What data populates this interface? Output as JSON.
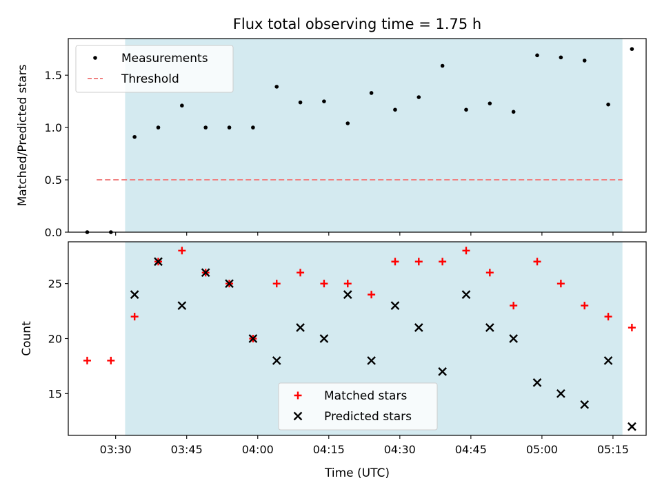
{
  "chart_data": {
    "title": "Flux total observing time = 1.75 h",
    "xlabel": "Time (UTC)",
    "x_ticks": [
      "03:30",
      "03:45",
      "04:00",
      "04:15",
      "04:30",
      "04:45",
      "05:00",
      "05:15"
    ],
    "x_tick_minutes": [
      210,
      225,
      240,
      255,
      270,
      285,
      300,
      315
    ],
    "xlim": [
      "03:20",
      "05:22"
    ],
    "observing_window": {
      "start": "03:32",
      "end": "05:17",
      "color": "#d4eaf0"
    },
    "panels": [
      {
        "type": "scatter",
        "ylabel": "Matched/Predicted stars",
        "ylim": [
          0,
          1.85
        ],
        "y_ticks": [
          "0.0",
          "0.5",
          "1.0",
          "1.5"
        ],
        "y_tick_values": [
          0,
          0.5,
          1.0,
          1.5
        ],
        "legend": "top-left",
        "series": [
          {
            "name": "Measurements",
            "marker": "dot",
            "color": "#000000",
            "times": [
              "03:24",
              "03:29",
              "03:34",
              "03:39",
              "03:44",
              "03:49",
              "03:54",
              "03:59",
              "04:04",
              "04:09",
              "04:14",
              "04:19",
              "04:24",
              "04:29",
              "04:34",
              "04:39",
              "04:44",
              "04:49",
              "04:54",
              "04:59",
              "05:04",
              "05:09",
              "05:14",
              "05:19"
            ],
            "values": [
              0,
              0,
              0.91,
              1.0,
              1.21,
              1.0,
              1.0,
              1.0,
              1.39,
              1.24,
              1.25,
              1.04,
              1.33,
              1.17,
              1.29,
              1.59,
              1.17,
              1.23,
              1.15,
              1.69,
              1.67,
              1.64,
              1.22,
              1.75
            ]
          },
          {
            "name": "Threshold",
            "marker": "dashed-line",
            "color": "#f08080",
            "x_range": [
              "03:26",
              "05:17"
            ],
            "value": 0.5
          }
        ]
      },
      {
        "type": "scatter",
        "ylabel": "Count",
        "ylim": [
          11.2,
          28.8
        ],
        "y_ticks": [
          "15",
          "20",
          "25"
        ],
        "y_tick_values": [
          15,
          20,
          25
        ],
        "legend": "bottom-center",
        "series": [
          {
            "name": "Matched stars",
            "marker": "plus",
            "color": "#ff0000",
            "times": [
              "03:24",
              "03:29",
              "03:34",
              "03:39",
              "03:44",
              "03:49",
              "03:54",
              "03:59",
              "04:04",
              "04:09",
              "04:14",
              "04:19",
              "04:24",
              "04:29",
              "04:34",
              "04:39",
              "04:44",
              "04:49",
              "04:54",
              "04:59",
              "05:04",
              "05:09",
              "05:14",
              "05:19"
            ],
            "values": [
              18,
              18,
              22,
              27,
              28,
              26,
              25,
              20,
              25,
              26,
              25,
              25,
              24,
              27,
              27,
              27,
              28,
              26,
              23,
              27,
              25,
              23,
              22,
              21
            ]
          },
          {
            "name": "Predicted stars",
            "marker": "x",
            "color": "#000000",
            "times": [
              "03:34",
              "03:39",
              "03:44",
              "03:49",
              "03:54",
              "03:59",
              "04:04",
              "04:09",
              "04:14",
              "04:19",
              "04:24",
              "04:29",
              "04:34",
              "04:39",
              "04:44",
              "04:49",
              "04:54",
              "04:59",
              "05:04",
              "05:09",
              "05:14",
              "05:19"
            ],
            "values": [
              24,
              27,
              23,
              26,
              25,
              20,
              18,
              21,
              20,
              24,
              18,
              23,
              21,
              17,
              24,
              21,
              20,
              16,
              15,
              14,
              18,
              12
            ]
          }
        ]
      }
    ]
  }
}
